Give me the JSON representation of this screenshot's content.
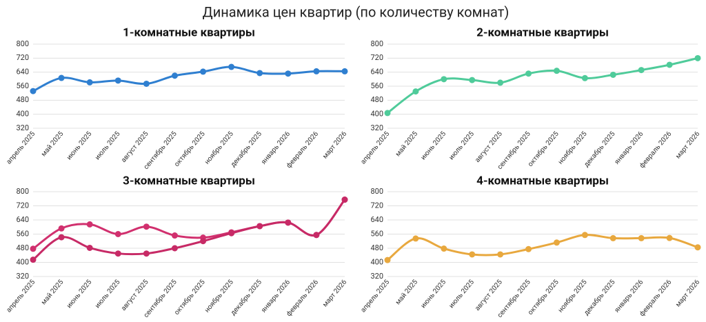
{
  "title": "Динамика цен квартир (по количеству комнат)",
  "chart_data": [
    {
      "type": "line",
      "title": "1-комнатные квартиры",
      "categories": [
        "апрель 2025",
        "май 2025",
        "июнь 2025",
        "июль 2025",
        "август 2025",
        "сентябрь 2025",
        "октябрь 2025",
        "ноябрь 2025",
        "декабрь 2025",
        "январь 2026",
        "февраль 2026",
        "март 2026"
      ],
      "series": [
        {
          "color": "#2f7fd0",
          "values": [
            532,
            607,
            582,
            592,
            574,
            620,
            643,
            670,
            635,
            632,
            645,
            645
          ]
        }
      ],
      "ylim": [
        320,
        800
      ],
      "yticks": [
        320,
        400,
        480,
        560,
        640,
        720,
        800
      ],
      "grid": true
    },
    {
      "type": "line",
      "title": "2-комнатные квартиры",
      "categories": [
        "апрель 2025",
        "май 2025",
        "июнь 2025",
        "июль 2025",
        "август 2025",
        "сентябрь 2025",
        "октябрь 2025",
        "ноябрь 2025",
        "декабрь 2025",
        "январь 2026",
        "февраль 2026",
        "март 2026"
      ],
      "series": [
        {
          "color": "#4fcb9a",
          "values": [
            407,
            530,
            600,
            595,
            580,
            632,
            648,
            606,
            625,
            652,
            682,
            720
          ]
        }
      ],
      "ylim": [
        320,
        800
      ],
      "yticks": [
        320,
        400,
        480,
        560,
        640,
        720,
        800
      ],
      "grid": true
    },
    {
      "type": "line",
      "title": "3-комнатные квартиры",
      "categories": [
        "апрель 2025",
        "май 2025",
        "июнь 2025",
        "июль 2025",
        "август 2025",
        "сентябрь 2025",
        "октябрь 2025",
        "ноябрь 2025",
        "декабрь 2025",
        "январь 2026",
        "февраль 2026",
        "март 2026"
      ],
      "series": [
        {
          "color": "#d1306e",
          "values": [
            477,
            592,
            615,
            560,
            602,
            552,
            540,
            570,
            605,
            625,
            555,
            755
          ]
        },
        {
          "color": "#c72a66",
          "values": [
            415,
            542,
            482,
            450,
            450,
            480,
            520,
            565,
            605,
            625,
            555,
            755
          ]
        }
      ],
      "ylim": [
        320,
        800
      ],
      "yticks": [
        320,
        400,
        480,
        560,
        640,
        720,
        800
      ],
      "grid": true
    },
    {
      "type": "line",
      "title": "4-комнатные квартиры",
      "categories": [
        "апрель 2025",
        "май 2025",
        "июнь 2025",
        "июль 2025",
        "август 2025",
        "сентябрь 2025",
        "октябрь 2025",
        "ноябрь 2025",
        "декабрь 2025",
        "январь 2026",
        "февраль 2026",
        "март 2026"
      ],
      "series": [
        {
          "color": "#e8a83e",
          "values": [
            413,
            535,
            478,
            445,
            445,
            475,
            512,
            555,
            537,
            537,
            538,
            485
          ]
        }
      ],
      "ylim": [
        320,
        800
      ],
      "yticks": [
        320,
        400,
        480,
        560,
        640,
        720,
        800
      ],
      "grid": true
    }
  ]
}
